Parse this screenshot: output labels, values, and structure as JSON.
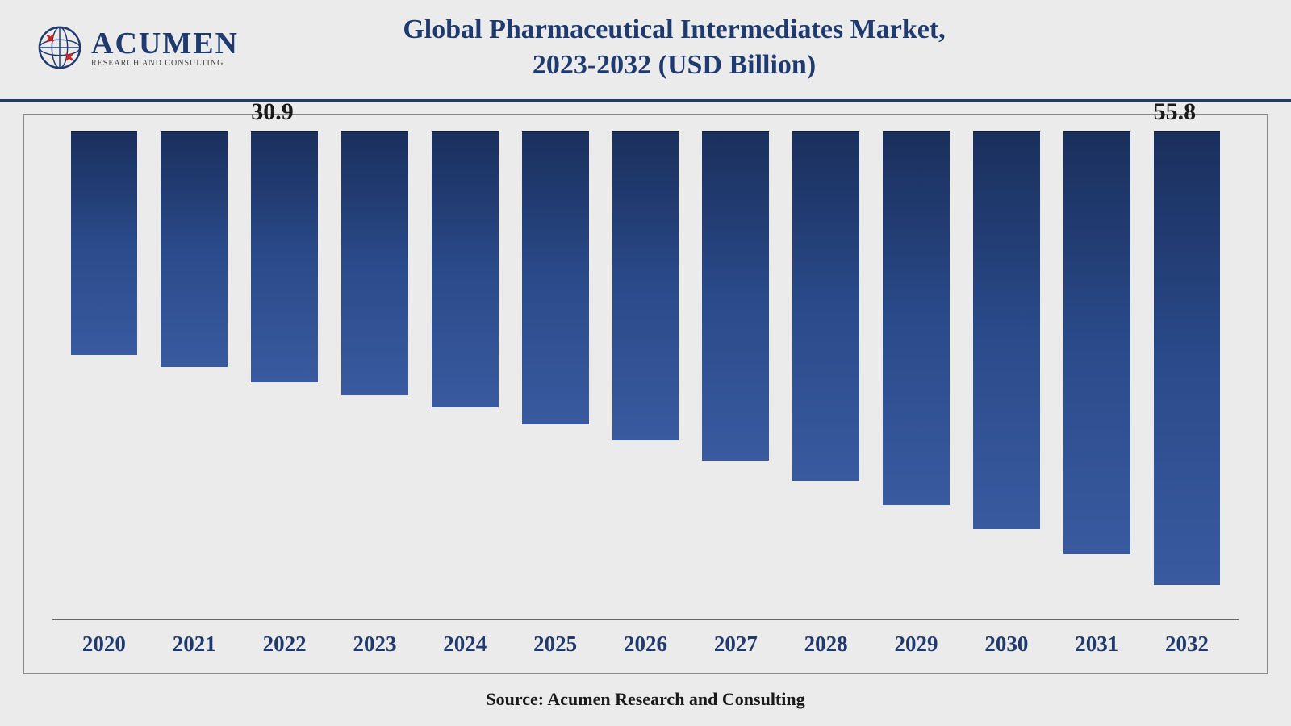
{
  "logo": {
    "main": "ACUMEN",
    "sub": "RESEARCH AND CONSULTING",
    "globe_color": "#1e3a6e",
    "accent_color": "#d32020"
  },
  "chart": {
    "type": "bar",
    "title_line1": "Global Pharmaceutical Intermediates Market,",
    "title_line2": "2023-2032 (USD Billion)",
    "title_color": "#1e3a6e",
    "title_fontsize": 34,
    "categories": [
      "2020",
      "2021",
      "2022",
      "2023",
      "2024",
      "2025",
      "2026",
      "2027",
      "2028",
      "2029",
      "2030",
      "2031",
      "2032"
    ],
    "values": [
      27.5,
      29.0,
      30.9,
      32.5,
      34.0,
      36.0,
      38.0,
      40.5,
      43.0,
      46.0,
      49.0,
      52.0,
      55.8
    ],
    "value_labels": {
      "2": "30.9",
      "12": "55.8"
    },
    "ymax": 60,
    "bar_gradient_top": "#1a2f5c",
    "bar_gradient_mid": "#2a4a8a",
    "bar_gradient_bottom": "#3a5aa0",
    "bar_width_pct": 74,
    "background_color": "#ebebeb",
    "border_color": "#888888",
    "baseline_color": "#666666",
    "x_label_fontsize": 27,
    "x_label_color": "#1e3a6e",
    "x_label_weight": "bold",
    "value_label_fontsize": 30,
    "value_label_color": "#1a1a1a",
    "header_border_color": "#1e3a6e"
  },
  "source": "Source: Acumen Research and Consulting"
}
